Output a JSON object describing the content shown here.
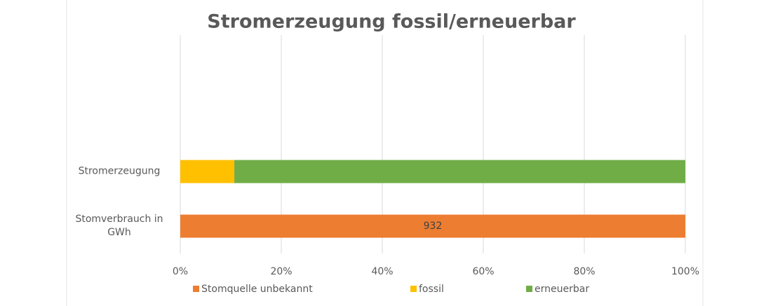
{
  "chart_data": {
    "type": "stacked-bar-horizontal",
    "title": "Stromerzeugung fossil/erneuerbar",
    "categories": [
      "Stomverbrauch in GWh",
      "Stromerzeugung"
    ],
    "series": [
      {
        "name": "Stomquelle unbekannt",
        "color": "#ed7d31",
        "values": [
          100,
          null
        ]
      },
      {
        "name": "fossil",
        "color": "#ffc000",
        "values": [
          null,
          10.7
        ]
      },
      {
        "name": "erneuerbar",
        "color": "#70ad47",
        "values": [
          null,
          89.3
        ]
      }
    ],
    "annotations": [
      {
        "text": "932"
      }
    ],
    "xlim": [
      0,
      100
    ],
    "xticks": [
      {
        "value": 0,
        "label": "0%"
      },
      {
        "value": 20,
        "label": "20%"
      },
      {
        "value": 40,
        "label": "40%"
      },
      {
        "value": 60,
        "label": "60%"
      },
      {
        "value": 80,
        "label": "80%"
      },
      {
        "value": 100,
        "label": "100%"
      }
    ],
    "grid": true,
    "legend": "bottom"
  }
}
